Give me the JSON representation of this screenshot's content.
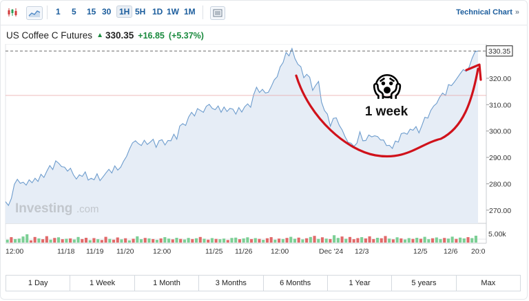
{
  "toolbar": {
    "intervals": [
      "1",
      "5",
      "15",
      "30",
      "1H",
      "5H",
      "1D",
      "1W",
      "1M"
    ],
    "active_interval": "1H",
    "technical_chart_label": "Technical Chart",
    "technical_chart_chevron": "»"
  },
  "quote": {
    "name": "US Coffee C Futures",
    "direction_icon": "up-arrow-icon",
    "price": "330.35",
    "change": "+16.85",
    "change_pct": "(+5.37%)",
    "up_color": "#1a8a3e"
  },
  "annotation": {
    "label": "1 week",
    "emoji": "😱",
    "stroke_color": "#d0121b"
  },
  "watermark": {
    "brand": "Investing",
    "suffix": ".com"
  },
  "ranges": [
    "1 Day",
    "1 Week",
    "1 Month",
    "3 Months",
    "6 Months",
    "1 Year",
    "5 years",
    "Max"
  ],
  "chart_data": {
    "type": "area",
    "title": "",
    "current_price_label": "330.35",
    "y_ticks": [
      "320.00",
      "310.00",
      "300.00",
      "290.00",
      "280.00",
      "270.00"
    ],
    "volume_tick": "5.00k",
    "x_ticks": [
      "12:00",
      "11/18",
      "11/19",
      "11/20",
      "12:00",
      "11/25",
      "11/26",
      "12:00",
      "Dec '24",
      "12/3",
      "12/5",
      "12/6",
      "20:0"
    ],
    "ylim": [
      265,
      333
    ],
    "reference_line": 313.5,
    "series": [
      {
        "values": [
          273.2,
          271.8,
          274.5,
          279.8,
          281.7,
          280.2,
          280.6,
          279.5,
          281.5,
          280.4,
          282.1,
          280.9,
          283.6,
          282.4,
          284.8,
          286.9,
          285.4,
          288.7,
          287.8,
          286.5,
          286.3,
          284.8,
          285.9,
          283.4,
          281.8,
          283.4,
          282.8,
          284.5,
          281.4,
          282.1,
          281.5,
          283.8,
          281.2,
          282.6,
          284.1,
          285.5,
          284.1,
          286.8,
          285.2,
          286.3,
          288.6,
          290.4,
          293.2,
          295.5,
          296.3,
          295.2,
          294.5,
          296.5,
          294.9,
          295.8,
          296.9,
          293.8,
          296.3,
          296.7,
          294.7,
          296.4,
          296.3,
          298.8,
          296.9,
          301.9,
          302.8,
          302.1,
          305.3,
          307.1,
          305.7,
          308.5,
          307.8,
          307.1,
          309.4,
          310.1,
          308.6,
          308.1,
          309.5,
          307.1,
          309.1,
          307.4,
          308.6,
          308.3,
          306.4,
          308.9,
          307.2,
          309.2,
          310.3,
          309.0,
          313.7,
          316.6,
          314.6,
          315.8,
          314.4,
          314.7,
          316.9,
          319.4,
          320.6,
          324.3,
          326.0,
          329.8,
          328.5,
          331.3,
          327.5,
          325.3,
          324.4,
          320.2,
          321.5,
          320.4,
          315.4,
          317.3,
          318.8,
          311.0,
          307.8,
          306.4,
          301.8,
          304.8,
          305.0,
          302.2,
          300.4,
          297.8,
          295.7,
          295.4,
          294.2,
          295.4,
          299.7,
          296.3,
          296.4,
          298.5,
          297.8,
          298.2,
          297.9,
          296.6,
          296.6,
          294.5,
          294.6,
          293.4,
          296.2,
          295.8,
          299.0,
          299.3,
          298.8,
          300.7,
          300.3,
          301.7,
          299.3,
          302.1,
          305.2,
          304.9,
          307.8,
          309.5,
          310.5,
          312.8,
          314.4,
          313.5,
          317.6,
          317.2,
          318.6,
          320.2,
          321.8,
          323.3,
          322.6,
          324.3,
          327.6,
          330.1,
          330.35
        ]
      }
    ],
    "volume": {
      "ylim": [
        0,
        6000
      ],
      "up_color": "#7ccf95",
      "down_color": "#e16a6a",
      "bars": [
        {
          "v": 1800,
          "up": true
        },
        {
          "v": 3400,
          "up": false
        },
        {
          "v": 2200,
          "up": true
        },
        {
          "v": 2500,
          "up": true
        },
        {
          "v": 3800,
          "up": true
        },
        {
          "v": 5200,
          "up": true
        },
        {
          "v": 1400,
          "up": false
        },
        {
          "v": 3500,
          "up": false
        },
        {
          "v": 2600,
          "up": true
        },
        {
          "v": 2100,
          "up": false
        },
        {
          "v": 4000,
          "up": false
        },
        {
          "v": 1800,
          "up": true
        },
        {
          "v": 2900,
          "up": false
        },
        {
          "v": 3300,
          "up": true
        },
        {
          "v": 2100,
          "up": false
        },
        {
          "v": 2400,
          "up": true
        },
        {
          "v": 2600,
          "up": false
        },
        {
          "v": 1900,
          "up": true
        },
        {
          "v": 3500,
          "up": true
        },
        {
          "v": 2200,
          "up": false
        },
        {
          "v": 3000,
          "up": false
        },
        {
          "v": 1500,
          "up": true
        },
        {
          "v": 2800,
          "up": false
        },
        {
          "v": 2100,
          "up": true
        },
        {
          "v": 1600,
          "up": false
        },
        {
          "v": 3600,
          "up": false
        },
        {
          "v": 2300,
          "up": true
        },
        {
          "v": 1800,
          "up": false
        },
        {
          "v": 3200,
          "up": false
        },
        {
          "v": 2000,
          "up": true
        },
        {
          "v": 2700,
          "up": false
        },
        {
          "v": 1400,
          "up": true
        },
        {
          "v": 2400,
          "up": false
        },
        {
          "v": 3900,
          "up": true
        },
        {
          "v": 2100,
          "up": true
        },
        {
          "v": 2900,
          "up": false
        },
        {
          "v": 2600,
          "up": true
        },
        {
          "v": 2200,
          "up": false
        },
        {
          "v": 1700,
          "up": true
        },
        {
          "v": 2600,
          "up": false
        },
        {
          "v": 3400,
          "up": true
        },
        {
          "v": 2500,
          "up": true
        },
        {
          "v": 2000,
          "up": false
        },
        {
          "v": 3000,
          "up": true
        },
        {
          "v": 2300,
          "up": false
        },
        {
          "v": 1900,
          "up": true
        },
        {
          "v": 2900,
          "up": true
        },
        {
          "v": 2200,
          "up": false
        },
        {
          "v": 2700,
          "up": true
        },
        {
          "v": 3500,
          "up": false
        },
        {
          "v": 2400,
          "up": true
        },
        {
          "v": 1800,
          "up": false
        },
        {
          "v": 2800,
          "up": true
        },
        {
          "v": 2300,
          "up": false
        },
        {
          "v": 2100,
          "up": true
        },
        {
          "v": 2500,
          "up": true
        },
        {
          "v": 1600,
          "up": false
        },
        {
          "v": 2900,
          "up": true
        },
        {
          "v": 3100,
          "up": true
        },
        {
          "v": 2100,
          "up": false
        },
        {
          "v": 2600,
          "up": true
        },
        {
          "v": 3300,
          "up": true
        },
        {
          "v": 2200,
          "up": false
        },
        {
          "v": 2800,
          "up": true
        },
        {
          "v": 2300,
          "up": false
        },
        {
          "v": 1700,
          "up": true
        },
        {
          "v": 2700,
          "up": false
        },
        {
          "v": 3400,
          "up": false
        },
        {
          "v": 1800,
          "up": true
        },
        {
          "v": 2500,
          "up": false
        },
        {
          "v": 2200,
          "up": true
        },
        {
          "v": 2900,
          "up": false
        },
        {
          "v": 3600,
          "up": true
        },
        {
          "v": 2400,
          "up": true
        },
        {
          "v": 3100,
          "up": false
        },
        {
          "v": 2000,
          "up": true
        },
        {
          "v": 2700,
          "up": false
        },
        {
          "v": 3500,
          "up": true
        },
        {
          "v": 4200,
          "up": false
        },
        {
          "v": 2300,
          "up": true
        },
        {
          "v": 3300,
          "up": false
        },
        {
          "v": 2500,
          "up": true
        },
        {
          "v": 2200,
          "up": false
        },
        {
          "v": 4600,
          "up": true
        },
        {
          "v": 2900,
          "up": true
        },
        {
          "v": 3800,
          "up": false
        },
        {
          "v": 2400,
          "up": true
        },
        {
          "v": 3500,
          "up": false
        },
        {
          "v": 2100,
          "up": false
        },
        {
          "v": 2800,
          "up": false
        },
        {
          "v": 3400,
          "up": true
        },
        {
          "v": 2600,
          "up": false
        },
        {
          "v": 3900,
          "up": false
        },
        {
          "v": 2200,
          "up": false
        },
        {
          "v": 3000,
          "up": true
        },
        {
          "v": 2700,
          "up": false
        },
        {
          "v": 4100,
          "up": false
        },
        {
          "v": 2500,
          "up": true
        },
        {
          "v": 2000,
          "up": false
        },
        {
          "v": 3300,
          "up": true
        },
        {
          "v": 2600,
          "up": false
        },
        {
          "v": 1900,
          "up": true
        },
        {
          "v": 2800,
          "up": true
        },
        {
          "v": 2300,
          "up": false
        },
        {
          "v": 3000,
          "up": true
        },
        {
          "v": 2400,
          "up": false
        },
        {
          "v": 3600,
          "up": true
        },
        {
          "v": 2100,
          "up": true
        },
        {
          "v": 2700,
          "up": false
        },
        {
          "v": 3200,
          "up": true
        },
        {
          "v": 2200,
          "up": true
        },
        {
          "v": 2900,
          "up": false
        },
        {
          "v": 2500,
          "up": true
        },
        {
          "v": 3700,
          "up": true
        },
        {
          "v": 2300,
          "up": false
        },
        {
          "v": 3100,
          "up": true
        },
        {
          "v": 2600,
          "up": true
        },
        {
          "v": 3400,
          "up": false
        },
        {
          "v": 2800,
          "up": true
        },
        {
          "v": 4300,
          "up": true
        }
      ]
    }
  }
}
